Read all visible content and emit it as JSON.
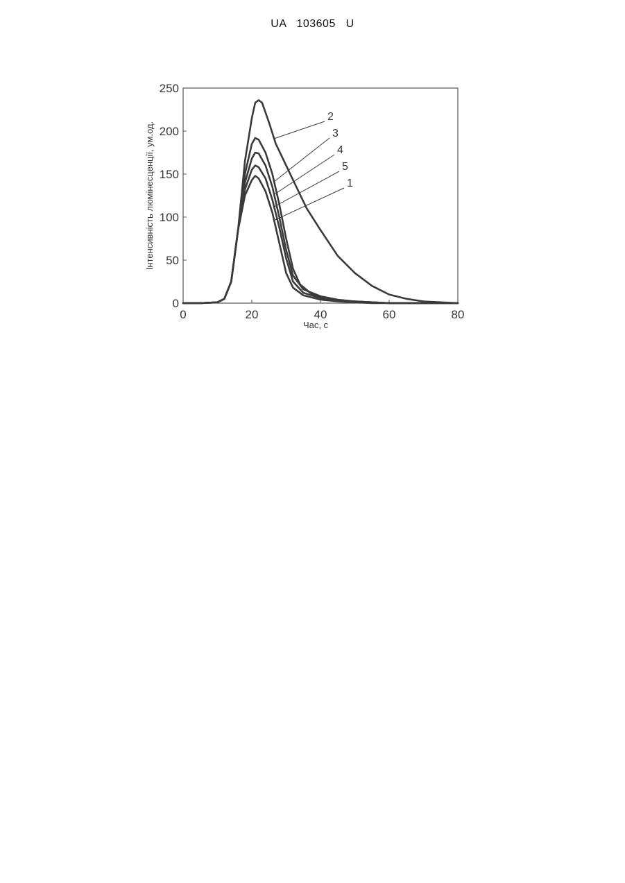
{
  "document": {
    "header": "UA   103605   U"
  },
  "colors": {
    "ink": "#3a3a3a",
    "axis": "#555555"
  },
  "chart_data": {
    "type": "line",
    "title": "",
    "xlabel": "Час, с",
    "ylabel": "Інтенсивність люмінесценції, ум.од.",
    "xlim": [
      0,
      80
    ],
    "ylim": [
      0,
      250
    ],
    "xticks": [
      0,
      20,
      40,
      60,
      80
    ],
    "yticks": [
      0,
      50,
      100,
      150,
      200,
      250
    ],
    "grid": false,
    "legend": "curve labels 1-5 with leader lines, upper right",
    "series": [
      {
        "name": "2",
        "x": [
          0,
          5,
          10,
          12,
          14,
          16,
          18,
          20,
          21,
          22,
          23,
          25,
          27,
          30,
          33,
          36,
          40,
          45,
          50,
          55,
          60,
          65,
          70,
          75,
          80
        ],
        "y": [
          0,
          0,
          1,
          5,
          25,
          85,
          165,
          215,
          233,
          236,
          233,
          210,
          185,
          160,
          135,
          110,
          85,
          55,
          35,
          20,
          10,
          5,
          2,
          1,
          0
        ]
      },
      {
        "name": "3",
        "x": [
          0,
          5,
          10,
          12,
          14,
          16,
          18,
          20,
          21,
          22,
          24,
          26,
          28,
          30,
          32,
          34,
          37,
          40,
          45,
          50,
          55,
          60,
          70,
          80
        ],
        "y": [
          0,
          0,
          1,
          5,
          25,
          85,
          150,
          185,
          192,
          190,
          175,
          150,
          115,
          75,
          40,
          22,
          12,
          6,
          3,
          2,
          1,
          0,
          0,
          0
        ]
      },
      {
        "name": "4",
        "x": [
          0,
          5,
          10,
          12,
          14,
          16,
          18,
          20,
          21,
          22,
          24,
          26,
          28,
          30,
          32,
          35,
          40,
          45,
          50,
          55,
          60,
          70,
          80
        ],
        "y": [
          0,
          0,
          1,
          5,
          25,
          85,
          140,
          168,
          175,
          174,
          160,
          135,
          100,
          62,
          32,
          16,
          8,
          4,
          2,
          1,
          0,
          0,
          0
        ]
      },
      {
        "name": "5",
        "x": [
          0,
          5,
          10,
          12,
          14,
          16,
          18,
          20,
          21,
          22,
          24,
          26,
          28,
          30,
          32,
          35,
          40,
          45,
          50,
          55,
          60,
          70,
          80
        ],
        "y": [
          0,
          0,
          1,
          5,
          25,
          85,
          132,
          155,
          160,
          158,
          145,
          120,
          88,
          52,
          25,
          12,
          6,
          3,
          2,
          1,
          0,
          0,
          0
        ]
      },
      {
        "name": "1",
        "x": [
          0,
          5,
          10,
          12,
          14,
          16,
          18,
          20,
          21,
          22,
          24,
          26,
          28,
          30,
          32,
          35,
          40,
          45,
          50,
          55,
          60,
          70,
          80
        ],
        "y": [
          0,
          0,
          1,
          5,
          25,
          85,
          125,
          143,
          148,
          145,
          130,
          105,
          70,
          35,
          18,
          9,
          4,
          2,
          1,
          0,
          0,
          0,
          0
        ]
      }
    ]
  }
}
